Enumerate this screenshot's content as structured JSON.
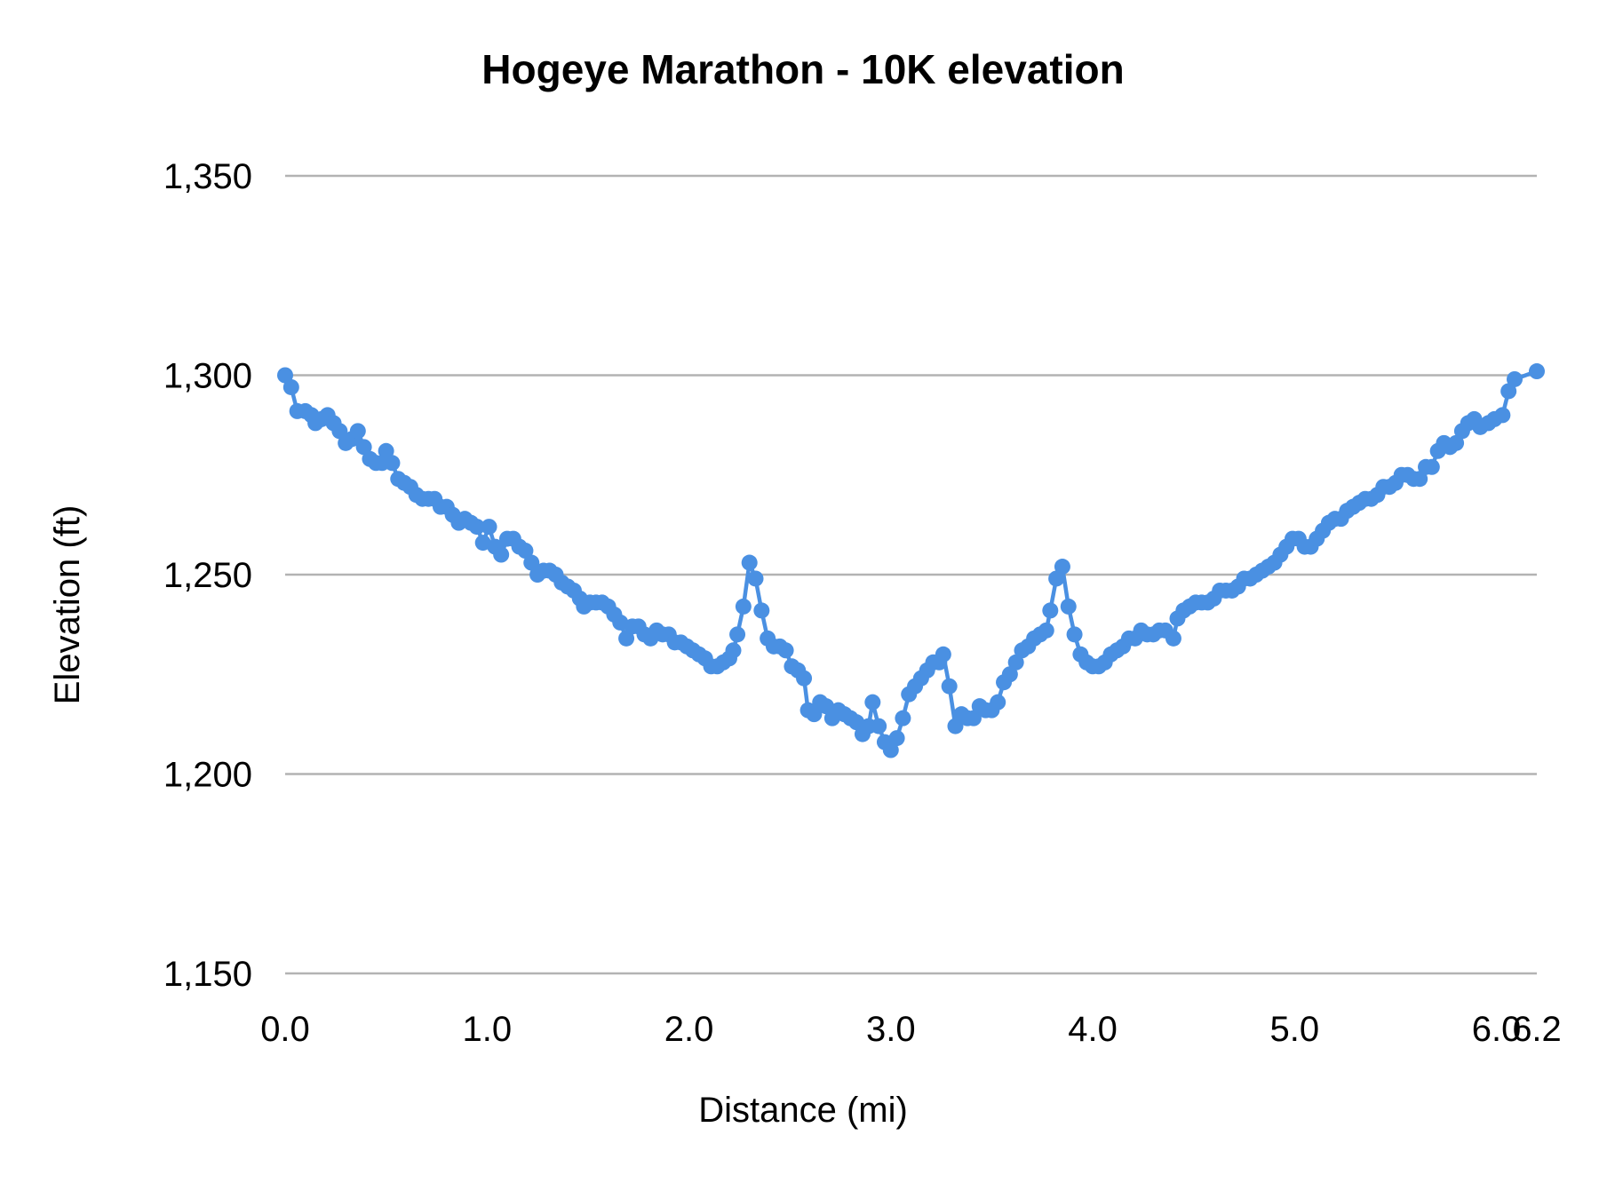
{
  "chart_data": {
    "type": "line",
    "title": "Hogeye Marathon - 10K elevation",
    "xlabel": "Distance (mi)",
    "ylabel": "Elevation (ft)",
    "xlim": [
      0,
      6.2
    ],
    "ylim": [
      1150,
      1350
    ],
    "x_ticks": [
      "0.0",
      "1.0",
      "2.0",
      "3.0",
      "4.0",
      "5.0",
      "6.0",
      "6.2"
    ],
    "x_tick_values": [
      0,
      1,
      2,
      3,
      4,
      5,
      6,
      6.2
    ],
    "y_ticks": [
      "1,150",
      "1,200",
      "1,250",
      "1,300",
      "1,350"
    ],
    "y_tick_values": [
      1150,
      1200,
      1250,
      1300,
      1350
    ],
    "grid": "horizontal",
    "legend": "none",
    "markers": true,
    "color": "#4a90e2",
    "x": [
      0.0,
      0.03,
      0.06,
      0.1,
      0.13,
      0.15,
      0.18,
      0.21,
      0.24,
      0.27,
      0.3,
      0.33,
      0.36,
      0.39,
      0.42,
      0.45,
      0.48,
      0.5,
      0.53,
      0.56,
      0.59,
      0.62,
      0.65,
      0.68,
      0.71,
      0.74,
      0.77,
      0.8,
      0.83,
      0.86,
      0.89,
      0.92,
      0.95,
      0.98,
      1.01,
      1.04,
      1.07,
      1.1,
      1.13,
      1.16,
      1.19,
      1.22,
      1.25,
      1.28,
      1.31,
      1.34,
      1.37,
      1.4,
      1.43,
      1.46,
      1.48,
      1.51,
      1.54,
      1.57,
      1.6,
      1.63,
      1.66,
      1.69,
      1.72,
      1.75,
      1.78,
      1.81,
      1.84,
      1.87,
      1.9,
      1.93,
      1.96,
      1.99,
      2.02,
      2.05,
      2.08,
      2.11,
      2.14,
      2.17,
      2.2,
      2.22,
      2.24,
      2.27,
      2.3,
      2.33,
      2.36,
      2.39,
      2.42,
      2.45,
      2.48,
      2.51,
      2.54,
      2.57,
      2.59,
      2.62,
      2.65,
      2.68,
      2.71,
      2.74,
      2.77,
      2.8,
      2.83,
      2.86,
      2.89,
      2.91,
      2.94,
      2.97,
      3.0,
      3.03,
      3.06,
      3.09,
      3.12,
      3.15,
      3.18,
      3.21,
      3.24,
      3.26,
      3.29,
      3.32,
      3.35,
      3.38,
      3.41,
      3.44,
      3.47,
      3.5,
      3.53,
      3.56,
      3.59,
      3.62,
      3.65,
      3.68,
      3.71,
      3.74,
      3.77,
      3.79,
      3.82,
      3.85,
      3.88,
      3.91,
      3.94,
      3.97,
      4.0,
      4.03,
      4.06,
      4.09,
      4.12,
      4.15,
      4.18,
      4.21,
      4.24,
      4.27,
      4.3,
      4.33,
      4.36,
      4.4,
      4.42,
      4.45,
      4.48,
      4.51,
      4.54,
      4.57,
      4.6,
      4.63,
      4.66,
      4.69,
      4.72,
      4.75,
      4.78,
      4.81,
      4.84,
      4.87,
      4.9,
      4.93,
      4.96,
      4.99,
      5.02,
      5.05,
      5.08,
      5.11,
      5.14,
      5.17,
      5.2,
      5.23,
      5.26,
      5.29,
      5.32,
      5.35,
      5.38,
      5.41,
      5.44,
      5.47,
      5.5,
      5.53,
      5.56,
      5.59,
      5.62,
      5.65,
      5.68,
      5.71,
      5.74,
      5.77,
      5.8,
      5.83,
      5.86,
      5.89,
      5.92,
      5.96,
      5.99,
      6.03,
      6.06,
      6.09,
      6.2
    ],
    "y": [
      1300,
      1297,
      1291,
      1291,
      1290,
      1288,
      1289,
      1290,
      1288,
      1286,
      1283,
      1284,
      1286,
      1282,
      1279,
      1278,
      1278,
      1281,
      1278,
      1274,
      1273,
      1272,
      1270,
      1269,
      1269,
      1269,
      1267,
      1267,
      1265,
      1263,
      1264,
      1263,
      1262,
      1258,
      1262,
      1257,
      1255,
      1259,
      1259,
      1257,
      1256,
      1253,
      1250,
      1251,
      1251,
      1250,
      1248,
      1247,
      1246,
      1244,
      1242,
      1243,
      1243,
      1243,
      1242,
      1240,
      1238,
      1234,
      1237,
      1237,
      1235,
      1234,
      1236,
      1235,
      1235,
      1233,
      1233,
      1232,
      1231,
      1230,
      1229,
      1227,
      1227,
      1228,
      1229,
      1231,
      1235,
      1242,
      1253,
      1249,
      1241,
      1234,
      1232,
      1232,
      1231,
      1227,
      1226,
      1224,
      1216,
      1215,
      1218,
      1217,
      1214,
      1216,
      1215,
      1214,
      1213,
      1210,
      1212,
      1218,
      1212,
      1208,
      1206,
      1209,
      1214,
      1220,
      1222,
      1224,
      1226,
      1228,
      1228,
      1230,
      1222,
      1212,
      1215,
      1214,
      1214,
      1217,
      1216,
      1216,
      1218,
      1223,
      1225,
      1228,
      1231,
      1232,
      1234,
      1235,
      1236,
      1241,
      1249,
      1252,
      1242,
      1235,
      1230,
      1228,
      1227,
      1227,
      1228,
      1230,
      1231,
      1232,
      1234,
      1234,
      1236,
      1235,
      1235,
      1236,
      1236,
      1234,
      1239,
      1241,
      1242,
      1243,
      1243,
      1243,
      1244,
      1246,
      1246,
      1246,
      1247,
      1249,
      1249,
      1250,
      1251,
      1252,
      1253,
      1255,
      1257,
      1259,
      1259,
      1257,
      1257,
      1259,
      1261,
      1263,
      1264,
      1264,
      1266,
      1267,
      1268,
      1269,
      1269,
      1270,
      1272,
      1272,
      1273,
      1275,
      1275,
      1274,
      1274,
      1277,
      1277,
      1281,
      1283,
      1282,
      1283,
      1286,
      1288,
      1289,
      1287,
      1288,
      1289,
      1290,
      1296,
      1299,
      1301
    ]
  }
}
